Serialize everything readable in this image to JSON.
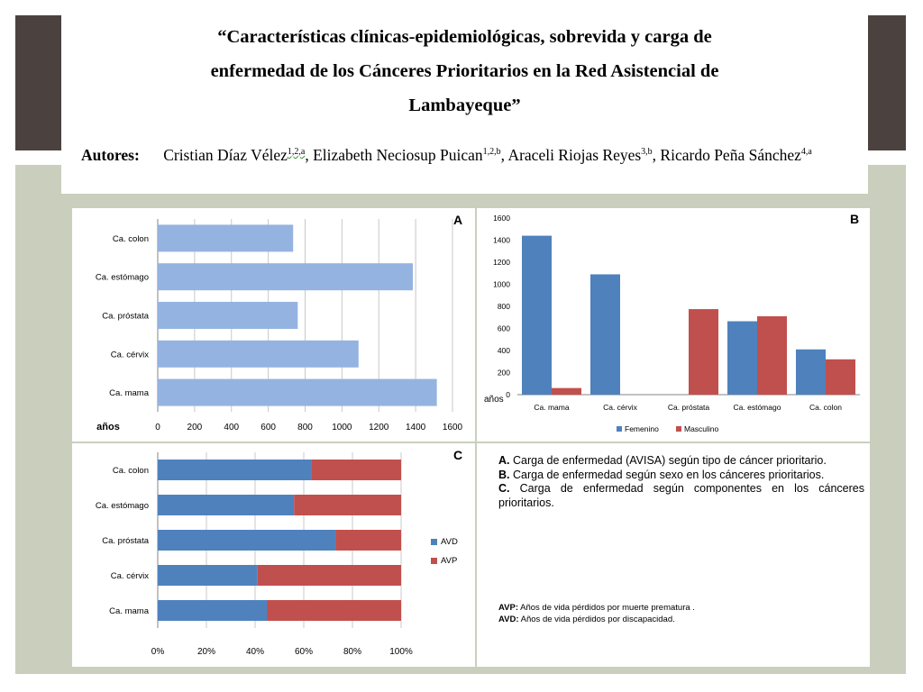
{
  "slide": {
    "title_lines": [
      "“Características clínicas-epidemiológicas, sobrevida y carga de",
      "enfermedad de los Cánceres Prioritarios en la Red Asistencial de",
      "Lambayeque”"
    ],
    "authors_label": "Autores:",
    "authors": [
      {
        "name": "Cristian Díaz Vélez",
        "sup": "1,2,a",
        "sep": ","
      },
      {
        "name": "Elizabeth Neciosup Puican",
        "sup": "1,2,b",
        "sep": ","
      },
      {
        "name": "Araceli Riojas Reyes",
        "sup": "3,b",
        "sep": ","
      },
      {
        "name": "Ricardo Peña Sánchez",
        "sup": "4,a",
        "sep": ""
      }
    ],
    "colors": {
      "top_bar": "#4b4240",
      "panel_bg": "#c9cfbc"
    }
  },
  "chart_data": [
    {
      "id": "A",
      "type": "bar",
      "orientation": "horizontal",
      "panel_label": "A",
      "categories": [
        "Ca. colon",
        "Ca. estómago",
        "Ca. próstata",
        "Ca. cérvix",
        "Ca. mama"
      ],
      "values": [
        735,
        1385,
        760,
        1090,
        1515
      ],
      "xlabel": "años",
      "xlim": [
        0,
        1600
      ],
      "xticks": [
        "0",
        "200",
        "400",
        "600",
        "800",
        "1000",
        "1200",
        "1400",
        "1600"
      ],
      "grid": "vertical",
      "colors": {
        "bar": "#95b3e0"
      }
    },
    {
      "id": "B",
      "type": "bar",
      "panel_label": "B",
      "categories": [
        "Ca. mama",
        "Ca. cérvix",
        "Ca. próstata",
        "Ca. estómago",
        "Ca. colon"
      ],
      "series": [
        {
          "name": "Femenino",
          "values": [
            1440,
            1090,
            0,
            665,
            410
          ],
          "color": "#4f81bd"
        },
        {
          "name": "Masculino",
          "values": [
            60,
            0,
            775,
            710,
            320
          ],
          "color": "#c0504d"
        }
      ],
      "ylabel": "años",
      "ylim": [
        0,
        1600
      ],
      "yticks": [
        "0",
        "200",
        "400",
        "600",
        "800",
        "1000",
        "1200",
        "1400",
        "1600"
      ],
      "legend": "bottom"
    },
    {
      "id": "C",
      "type": "bar",
      "orientation": "horizontal",
      "stacked": "percent",
      "panel_label": "C",
      "categories": [
        "Ca. colon",
        "Ca. estómago",
        "Ca. próstata",
        "Ca. cérvix",
        "Ca. mama"
      ],
      "series": [
        {
          "name": "AVD",
          "values": [
            63,
            56,
            73,
            41,
            45
          ],
          "color": "#4f81bd"
        },
        {
          "name": "AVP",
          "values": [
            37,
            44,
            27,
            59,
            55
          ],
          "color": "#c0504d"
        }
      ],
      "xlim": [
        0,
        100
      ],
      "xticks": [
        "0%",
        "20%",
        "40%",
        "60%",
        "80%",
        "100%"
      ],
      "legend": "right"
    }
  ],
  "notes": {
    "captions": [
      {
        "key": "A.",
        "text": "Carga de enfermedad (AVISA) según tipo de cáncer prioritario."
      },
      {
        "key": "B.",
        "text": "Carga de enfermedad según sexo en los cánceres prioritarios."
      },
      {
        "key": "C.",
        "text": "Carga de enfermedad según componentes en los cánceres prioritarios."
      }
    ],
    "abbreviations": [
      {
        "key": "AVP:",
        "text": "Años de vida pérdidos por muerte prematura ."
      },
      {
        "key": "AVD:",
        "text": "Años de vida pérdidos por discapacidad."
      }
    ]
  }
}
